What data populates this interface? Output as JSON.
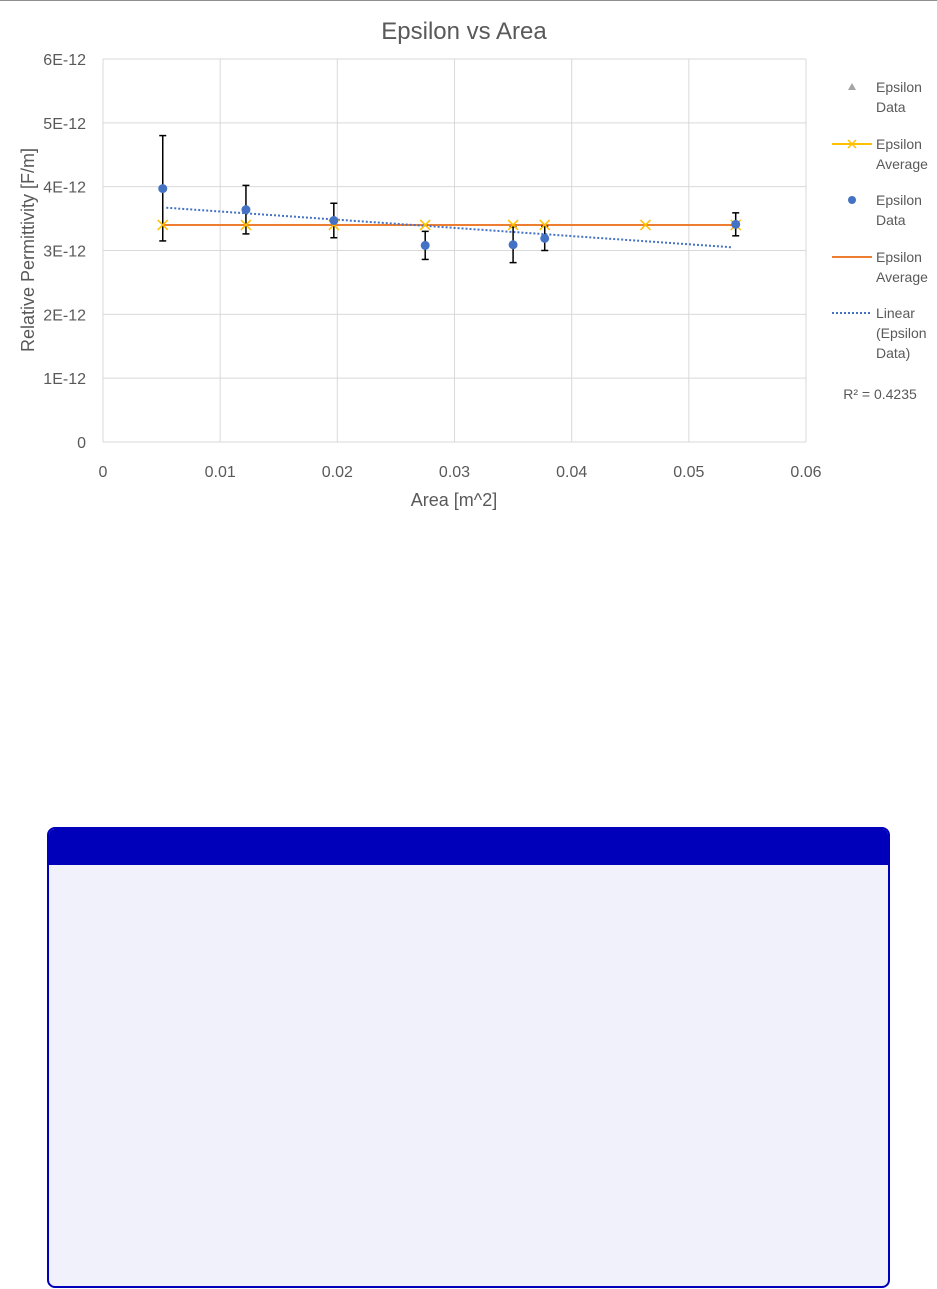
{
  "chart_data": {
    "type": "scatter",
    "title": "Epsilon vs Area",
    "xlabel": "Area [m^2]",
    "ylabel": "Relative Permittivity [F/m]",
    "xlim": [
      0,
      0.06
    ],
    "ylim": [
      0,
      6e-12
    ],
    "x_ticks": [
      "0",
      "0.01",
      "0.02",
      "0.03",
      "0.04",
      "0.05",
      "0.06"
    ],
    "y_ticks": [
      "0",
      "1E-12",
      "2E-12",
      "3E-12",
      "4E-12",
      "5E-12",
      "6E-12"
    ],
    "grid": true,
    "legend_position": "right",
    "series": [
      {
        "name": "Epsilon Data",
        "kind": "triangle-marker",
        "color": "#a5a5a5",
        "x": [],
        "y": []
      },
      {
        "name": "Epsilon Average",
        "kind": "x-marker-line",
        "color": "#ffc000",
        "x": [
          0.0051,
          0.0122,
          0.0197,
          0.0275,
          0.035,
          0.0377,
          0.0463,
          0.054
        ],
        "y": [
          3.4e-12,
          3.4e-12,
          3.4e-12,
          3.4e-12,
          3.4e-12,
          3.4e-12,
          3.4e-12,
          3.4e-12
        ]
      },
      {
        "name": "Epsilon Data",
        "kind": "circle-marker",
        "color": "#4472c4",
        "x": [
          0.0051,
          0.0122,
          0.0197,
          0.0275,
          0.035,
          0.0377,
          0.054
        ],
        "y": [
          3.97e-12,
          3.64e-12,
          3.47e-12,
          3.08e-12,
          3.09e-12,
          3.19e-12,
          3.41e-12
        ],
        "err_low": [
          8.2e-13,
          3.8e-13,
          2.7e-13,
          2.2e-13,
          2.8e-13,
          1.9e-13,
          1.8e-13
        ],
        "err_high": [
          8.3e-13,
          3.8e-13,
          2.7e-13,
          2.2e-13,
          2.8e-13,
          1.9e-13,
          1.8e-13
        ]
      },
      {
        "name": "Epsilon Average",
        "kind": "line",
        "color": "#ed7d31",
        "x": [
          0.0051,
          0.054
        ],
        "y": [
          3.4e-12,
          3.4e-12
        ]
      },
      {
        "name": "Linear (Epsilon Data)",
        "kind": "trendline",
        "color": "#4472c4",
        "x": [
          0.0054,
          0.0537
        ],
        "y": [
          3.67e-12,
          3.05e-12
        ]
      }
    ],
    "legend": [
      {
        "lines": [
          "Epsilon",
          "Data"
        ],
        "kind": "triangle-marker",
        "color": "#a5a5a5"
      },
      {
        "lines": [
          "Epsilon",
          "Average"
        ],
        "kind": "x-marker-line",
        "color": "#ffc000"
      },
      {
        "lines": [
          "Epsilon",
          "Data"
        ],
        "kind": "circle-marker",
        "color": "#4472c4"
      },
      {
        "lines": [
          "Epsilon",
          "Average"
        ],
        "kind": "line",
        "color": "#ed7d31"
      },
      {
        "lines": [
          "Linear",
          "(Epsilon",
          "Data)"
        ],
        "kind": "trendline",
        "color": "#4472c4"
      }
    ],
    "annotation": "R² = 0.4235"
  },
  "panel": {
    "title": "",
    "body": ""
  }
}
